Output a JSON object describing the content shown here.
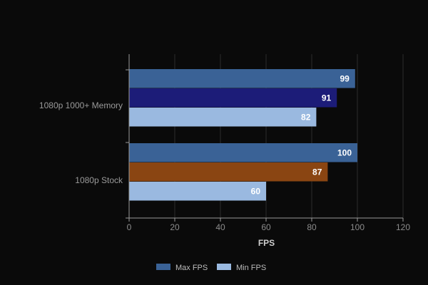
{
  "chart_data": {
    "type": "bar",
    "orientation": "horizontal",
    "title": "",
    "xlabel": "FPS",
    "ylabel": "",
    "xlim": [
      0,
      120
    ],
    "xticks": [
      0,
      20,
      40,
      60,
      80,
      100,
      120
    ],
    "grid": true,
    "legend_position": "bottom",
    "categories": [
      "1080p 1000+ Memory",
      "1080p Stock"
    ],
    "bars": [
      {
        "category": "1080p 1000+ Memory",
        "value": 99,
        "label": "99",
        "color": "#3a6296"
      },
      {
        "category": "1080p 1000+ Memory",
        "value": 91,
        "label": "91",
        "color": "#1c1c78"
      },
      {
        "category": "1080p 1000+ Memory",
        "value": 82,
        "label": "82",
        "color": "#9ab9e0"
      },
      {
        "category": "1080p Stock",
        "value": 100,
        "label": "100",
        "color": "#3a6296"
      },
      {
        "category": "1080p Stock",
        "value": 87,
        "label": "87",
        "color": "#8a4512"
      },
      {
        "category": "1080p Stock",
        "value": 60,
        "label": "60",
        "color": "#9ab9e0"
      }
    ],
    "legend": [
      {
        "name": "Max FPS",
        "color": "#3a6296"
      },
      {
        "name": "Min FPS",
        "color": "#9ab9e0"
      }
    ],
    "colors": {
      "grid": "#2c2c2c",
      "axis": "#9a9a9a"
    }
  }
}
